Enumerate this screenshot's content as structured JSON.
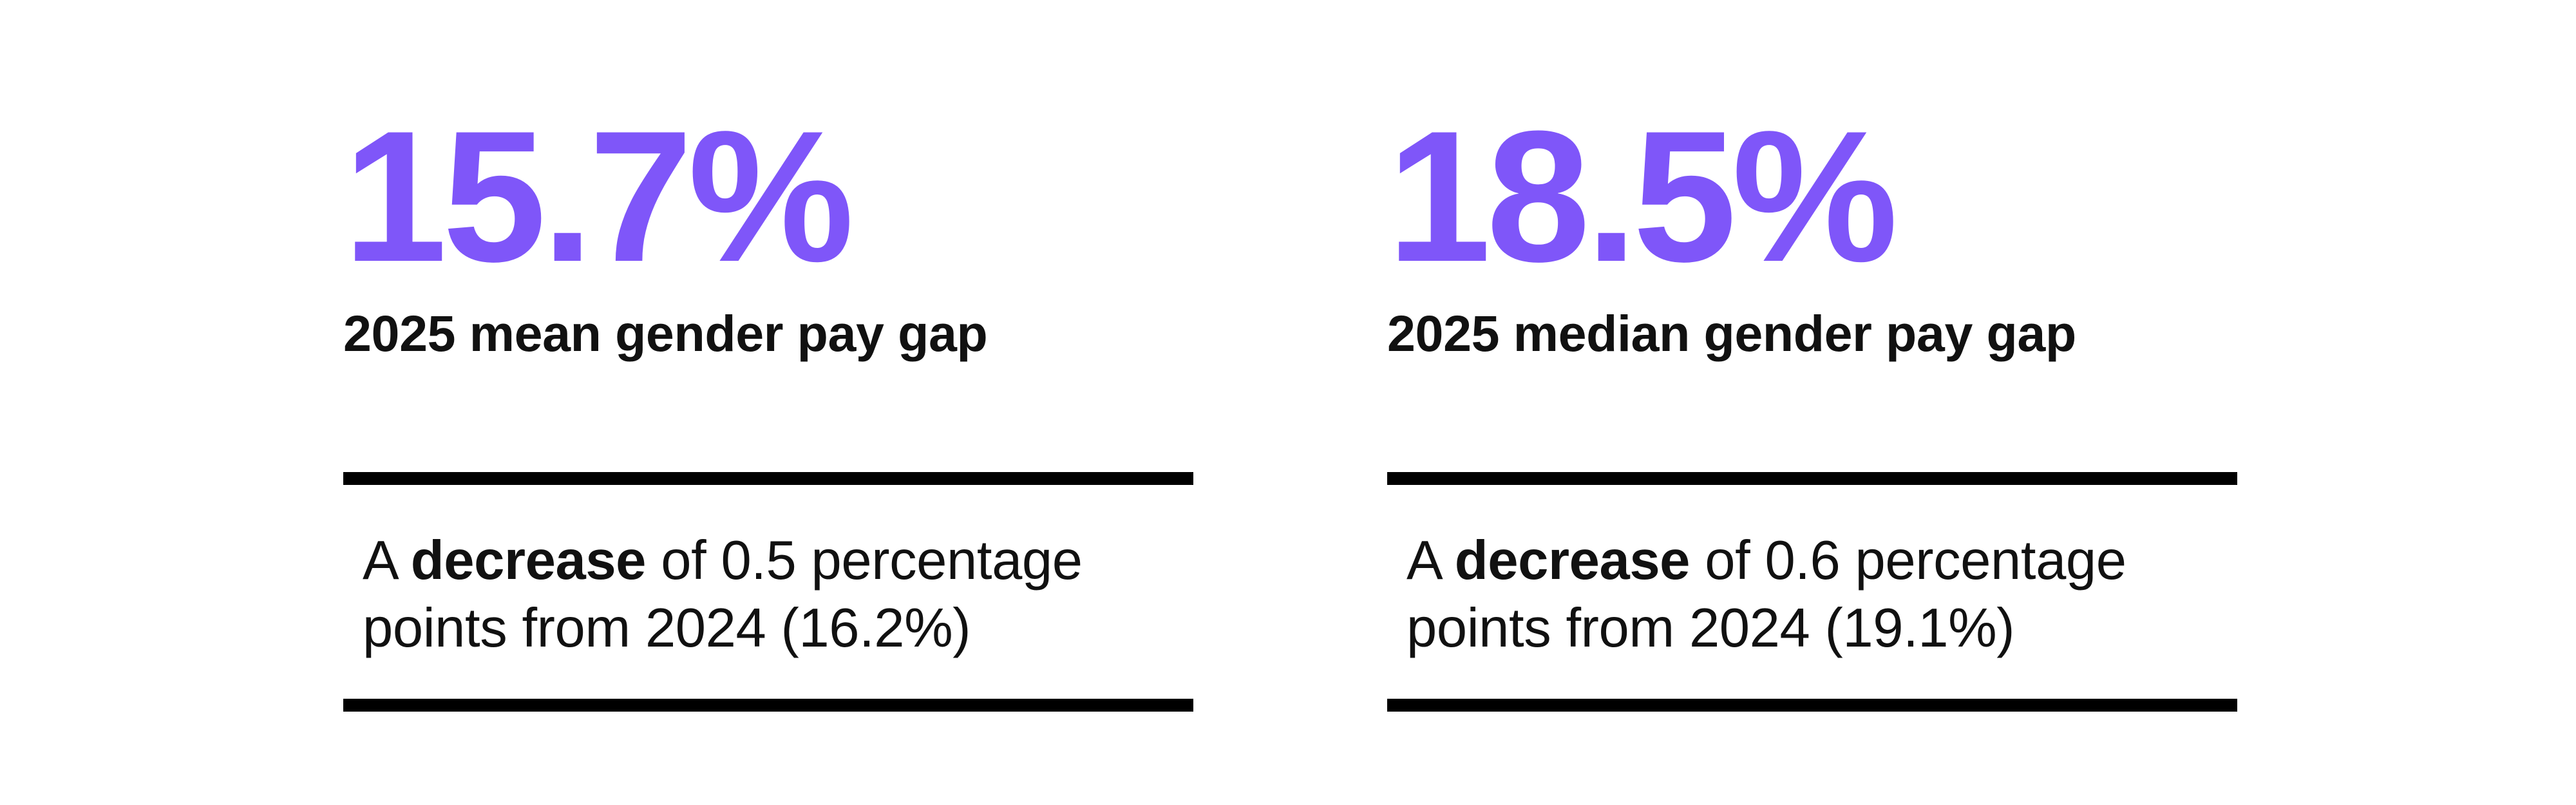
{
  "page": {
    "background_color": "#ffffff",
    "accent_color": "#7F56F9",
    "text_color": "#111111",
    "divider_color": "#000000"
  },
  "stats": [
    {
      "value": "15.7%",
      "label": "2025 mean gender pay gap",
      "note": {
        "prefix": "A ",
        "bold": "decrease",
        "rest": " of 0.5 percentage points from 2024 (16.2%)",
        "full_text": "A decrease of 0.5 percentage points from 2024 (16.2%)"
      }
    },
    {
      "value": "18.5%",
      "label": "2025 median gender pay gap",
      "note": {
        "prefix": "A ",
        "bold": "decrease",
        "rest": " of 0.6 percentage points from 2024 (19.1%)",
        "full_text": "A decrease of 0.6 percentage points from 2024 (19.1%)"
      }
    }
  ]
}
